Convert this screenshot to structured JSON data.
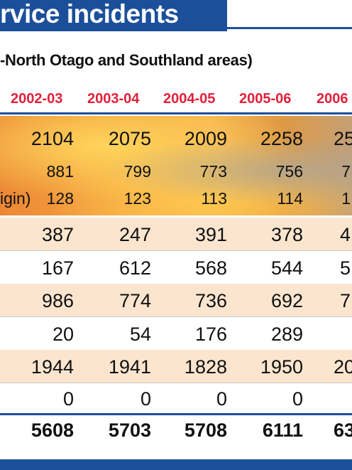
{
  "header": {
    "title": "rvice incidents"
  },
  "subtitle": "-North Otago and Southland areas)",
  "years": [
    "2002-03",
    "2003-04",
    "2004-05",
    "2005-06",
    "2006"
  ],
  "rows": [
    {
      "label": "",
      "values": [
        "2104",
        "2075",
        "2009",
        "2258",
        "25"
      ]
    },
    {
      "label": "",
      "values": [
        "881",
        "799",
        "773",
        "756",
        "7"
      ]
    },
    {
      "label": "igin)",
      "values": [
        "128",
        "123",
        "113",
        "114",
        "1"
      ]
    },
    {
      "label": "",
      "values": [
        "387",
        "247",
        "391",
        "378",
        "4"
      ]
    },
    {
      "label": "",
      "values": [
        "167",
        "612",
        "568",
        "544",
        "5"
      ]
    },
    {
      "label": "",
      "values": [
        "986",
        "774",
        "736",
        "692",
        "7"
      ]
    },
    {
      "label": "",
      "values": [
        "20",
        "54",
        "176",
        "289",
        ""
      ]
    },
    {
      "label": "",
      "values": [
        "1944",
        "1941",
        "1828",
        "1950",
        "20"
      ]
    },
    {
      "label": "",
      "values": [
        "0",
        "0",
        "0",
        "0",
        ""
      ]
    },
    {
      "label": "",
      "values": [
        "5608",
        "5703",
        "5708",
        "6111",
        "63"
      ]
    }
  ],
  "colors": {
    "header_blue": "#1c4f9a",
    "year_red": "#e0213a",
    "row_shade": "#fbe5cf"
  }
}
